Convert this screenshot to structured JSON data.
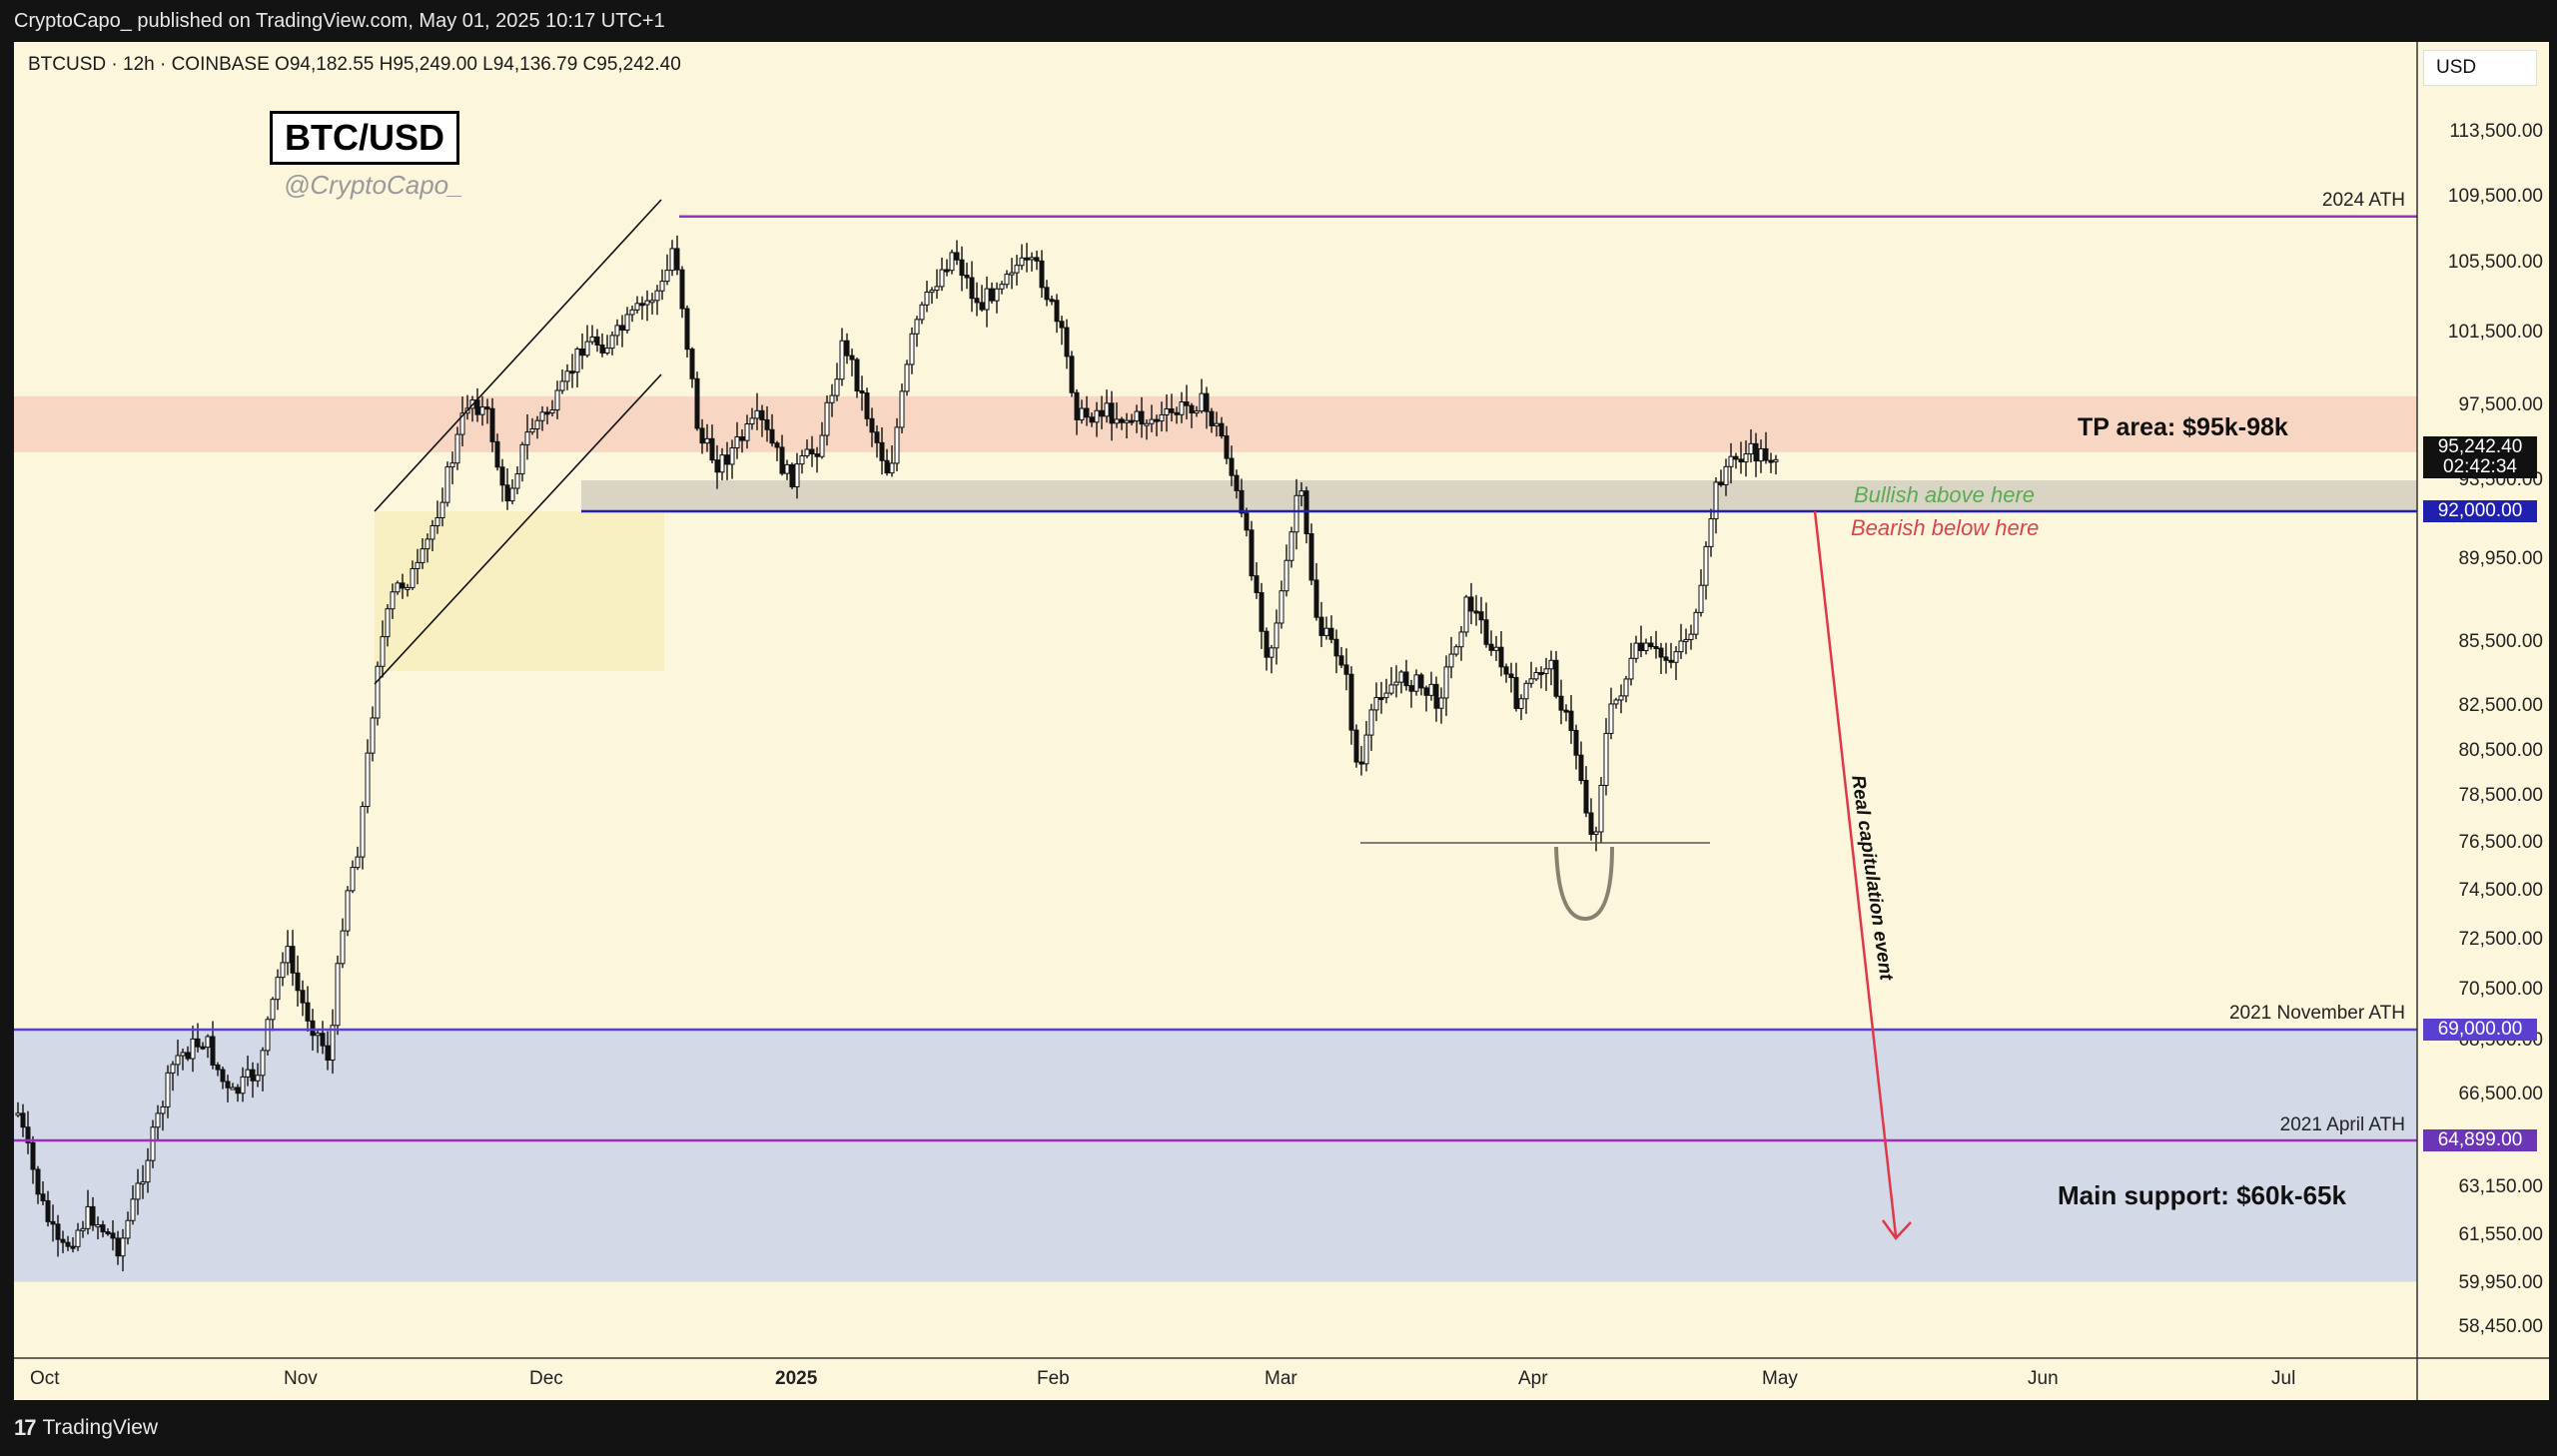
{
  "header": {
    "publish_text": "CryptoCapo_ published on TradingView.com, May 01, 2025 10:17 UTC+1"
  },
  "legend": {
    "text": "BTCUSD · 12h · COINBASE  O94,182.55  H95,249.00  L94,136.79  C95,242.40"
  },
  "watermark": {
    "title": "BTC/USD",
    "handle": "@CryptoCapo_"
  },
  "currency_button": "USD",
  "footer": {
    "logo": "⚡",
    "brand": "TradingView"
  },
  "price_axis": {
    "ticks": [
      "113,500.00",
      "109,500.00",
      "105,500.00",
      "101,500.00",
      "97,500.00",
      "93,500.00",
      "89,950.00",
      "85,500.00",
      "82,500.00",
      "80,500.00",
      "78,500.00",
      "76,500.00",
      "74,500.00",
      "72,500.00",
      "70,500.00",
      "68,500.00",
      "66,500.00",
      "63,150.00",
      "61,550.00",
      "59,950.00",
      "58,450.00"
    ],
    "current_price": "95,242.40",
    "countdown": "02:42:34",
    "tag_92k": "92,000.00",
    "tag_69k": "69,000.00",
    "tag_64k": "64,899.00"
  },
  "time_axis": [
    "Oct",
    "Nov",
    "Dec",
    "2025",
    "Feb",
    "Mar",
    "Apr",
    "May",
    "Jun",
    "Jul"
  ],
  "annotations": {
    "ath_2024": "2024 ATH",
    "ath_2021_nov": "2021 November ATH",
    "ath_2021_apr": "2021 April ATH",
    "tp_area": "TP area: $95k-98k",
    "bullish": "Bullish above here",
    "bearish": "Bearish below here",
    "capitulation": "Real capitulation event",
    "main_support": "Main support: $60k-65k"
  },
  "colors": {
    "background": "#fcf6dd",
    "tp_zone": "#f8d6c4",
    "support_zone": "#d3d9e6",
    "neutral_band": "#d5d0c0",
    "ath_line": "#9b30c0",
    "level_line": "#5b3fd0",
    "arrow": "#e03848",
    "bullish_text": "#5caa55",
    "bearish_text": "#d9434d"
  },
  "chart_data": {
    "type": "candlestick",
    "symbol": "BTCUSD",
    "interval": "12h",
    "exchange": "COINBASE",
    "x": [
      "Oct",
      "Oct",
      "Nov",
      "Nov",
      "Nov",
      "Nov",
      "Dec",
      "Dec",
      "Dec",
      "2025",
      "2025",
      "2025",
      "2025",
      "Feb",
      "Feb",
      "Feb",
      "Mar",
      "Mar",
      "Mar",
      "Apr",
      "Apr",
      "Apr",
      "Apr",
      "May"
    ],
    "close": [
      63500,
      60800,
      68500,
      69500,
      88500,
      96000,
      95500,
      100500,
      104500,
      94000,
      99500,
      104000,
      102500,
      97500,
      96000,
      84500,
      88000,
      82500,
      85500,
      79000,
      84500,
      86000,
      95000,
      95242.4
    ],
    "levels": {
      "ath_2024": 108300,
      "nov_2021_ath": 69000,
      "apr_2021_ath": 64899,
      "bull_bear_pivot": 92000,
      "tp_zone": [
        95000,
        98000
      ],
      "support_zone": [
        60000,
        65000
      ]
    },
    "ylim": [
      57500,
      116000
    ]
  }
}
